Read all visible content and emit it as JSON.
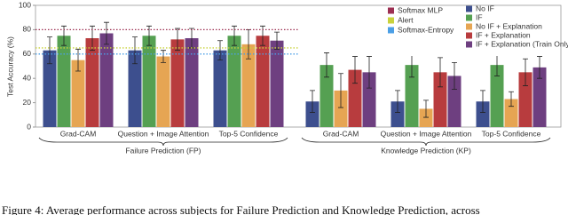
{
  "chart_data": {
    "type": "bar",
    "y_label": "Test Accuracy (%)",
    "ylim": [
      0,
      100
    ],
    "yticks": [
      0,
      20,
      40,
      60,
      80,
      100
    ],
    "categories": [
      "Grad-CAM",
      "Question + Image Attention",
      "Top-5 Confidence",
      "Grad-CAM",
      "Question + Image Attention",
      "Top-5 Confidence"
    ],
    "sections": [
      "Failure Prediction (FP)",
      "Knowledge Prediction (KP)"
    ],
    "series": [
      {
        "name": "No IF",
        "color": "#3d4f8e",
        "values": [
          63,
          63,
          63,
          21,
          21,
          21
        ],
        "errors": [
          11,
          11,
          8,
          9,
          9,
          9
        ]
      },
      {
        "name": "IF",
        "color": "#55a052",
        "values": [
          75,
          75,
          75,
          51,
          51,
          51
        ],
        "errors": [
          8,
          8,
          8,
          10,
          10,
          9
        ]
      },
      {
        "name": "No IF + Explanation",
        "color": "#e6a553",
        "values": [
          55,
          58,
          68,
          30,
          15,
          23
        ],
        "errors": [
          9,
          5,
          12,
          14,
          7,
          6
        ]
      },
      {
        "name": "IF + Explanation",
        "color": "#b83c3e",
        "values": [
          73,
          72,
          75,
          47,
          45,
          45
        ],
        "errors": [
          10,
          9,
          8,
          11,
          12,
          11
        ]
      },
      {
        "name": "IF + Explanation (Train Only)",
        "color": "#6e3f80",
        "values": [
          77,
          73,
          71,
          45,
          42,
          49
        ],
        "errors": [
          9,
          8,
          7,
          13,
          11,
          9
        ]
      }
    ],
    "reference_lines": [
      {
        "name": "Softmax MLP",
        "color": "#9c2f52",
        "value": 80
      },
      {
        "name": "Alert",
        "color": "#c9d23c",
        "value": 65
      },
      {
        "name": "Softmax-Entropy",
        "color": "#4b9fe6",
        "value": 60
      }
    ],
    "caption": "Figure 4: Average performance across subjects for Failure Prediction and Knowledge Prediction, across"
  }
}
